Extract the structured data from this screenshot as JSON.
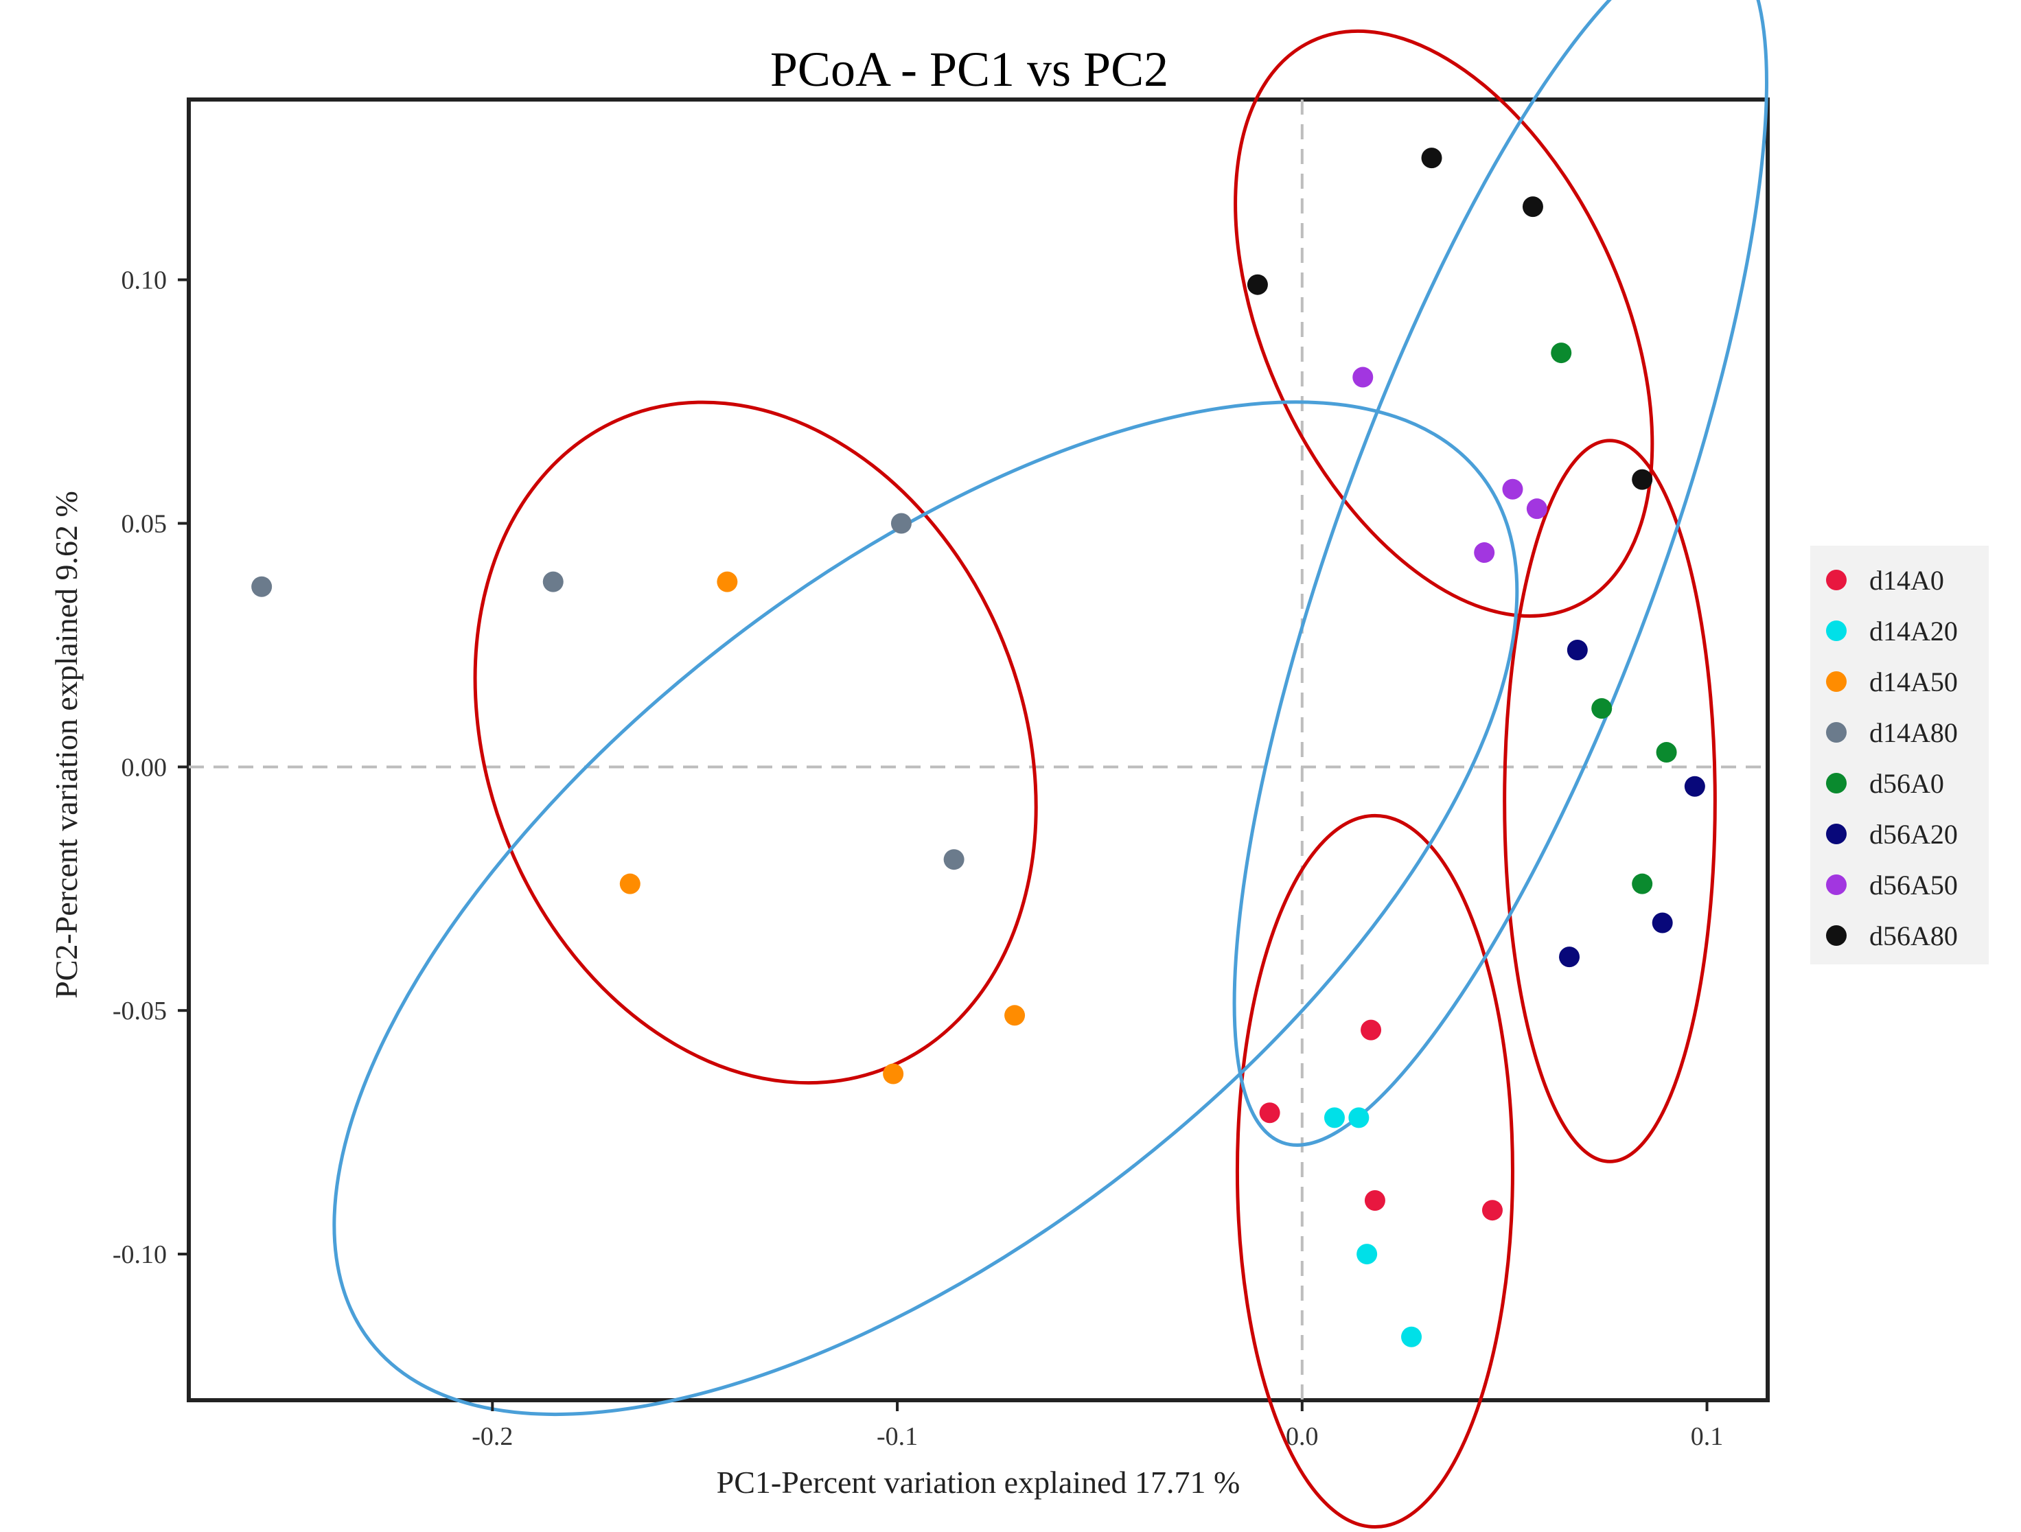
{
  "chart_data": {
    "type": "scatter",
    "title": "PCoA - PC1 vs PC2",
    "xlabel": "PC1-Percent variation explained 17.71 %",
    "ylabel": "PC2-Percent variation explained 9.62 %",
    "xlim": [
      -0.275,
      0.115
    ],
    "ylim": [
      -0.13,
      0.137
    ],
    "x_ticks": [
      {
        "value": -0.2,
        "label": "-0.2"
      },
      {
        "value": -0.1,
        "label": "-0.1"
      },
      {
        "value": 0.0,
        "label": "0.0"
      },
      {
        "value": 0.1,
        "label": "0.1"
      }
    ],
    "y_ticks": [
      {
        "value": 0.1,
        "label": "0.10"
      },
      {
        "value": 0.05,
        "label": "0.05"
      },
      {
        "value": 0.0,
        "label": "0.00"
      },
      {
        "value": -0.05,
        "label": "-0.05"
      },
      {
        "value": -0.1,
        "label": "-0.10"
      }
    ],
    "grid": false,
    "reference_lines": {
      "x": 0,
      "y": 0,
      "style": "dashed"
    },
    "legend_position": "right",
    "series": [
      {
        "name": "d14A0",
        "color": "#e8173f",
        "points": [
          [
            -0.008,
            -0.071
          ],
          [
            0.017,
            -0.054
          ],
          [
            0.018,
            -0.089
          ],
          [
            0.047,
            -0.091
          ]
        ]
      },
      {
        "name": "d14A20",
        "color": "#00e0e8",
        "points": [
          [
            0.008,
            -0.072
          ],
          [
            0.014,
            -0.072
          ],
          [
            0.016,
            -0.1
          ],
          [
            0.027,
            -0.117
          ]
        ]
      },
      {
        "name": "d14A50",
        "color": "#ff8c00",
        "points": [
          [
            -0.142,
            0.038
          ],
          [
            -0.166,
            -0.024
          ],
          [
            -0.071,
            -0.051
          ],
          [
            -0.101,
            -0.063
          ]
        ]
      },
      {
        "name": "d14A80",
        "color": "#6b7b8c",
        "points": [
          [
            -0.257,
            0.037
          ],
          [
            -0.185,
            0.038
          ],
          [
            -0.099,
            0.05
          ],
          [
            -0.086,
            -0.019
          ]
        ]
      },
      {
        "name": "d56A0",
        "color": "#0a8a2e",
        "points": [
          [
            0.064,
            0.085
          ],
          [
            0.074,
            0.012
          ],
          [
            0.09,
            0.003
          ],
          [
            0.084,
            -0.024
          ]
        ]
      },
      {
        "name": "d56A20",
        "color": "#08087a",
        "points": [
          [
            0.068,
            0.024
          ],
          [
            0.097,
            -0.004
          ],
          [
            0.089,
            -0.032
          ],
          [
            0.066,
            -0.039
          ]
        ]
      },
      {
        "name": "d56A50",
        "color": "#a236e0",
        "points": [
          [
            0.015,
            0.08
          ],
          [
            0.052,
            0.057
          ],
          [
            0.058,
            0.053
          ],
          [
            0.045,
            0.044
          ]
        ]
      },
      {
        "name": "d56A80",
        "color": "#111111",
        "points": [
          [
            0.032,
            0.125
          ],
          [
            0.057,
            0.115
          ],
          [
            -0.011,
            0.099
          ],
          [
            0.084,
            0.059
          ]
        ]
      }
    ],
    "ellipses": [
      {
        "group": "inner-1",
        "color": "#cc0000",
        "cx": -0.135,
        "cy": 0.005,
        "rx": 0.066,
        "ry": 0.072,
        "angle": -22
      },
      {
        "group": "inner-2",
        "color": "#cc0000",
        "cx": 0.035,
        "cy": 0.091,
        "rx": 0.044,
        "ry": 0.064,
        "angle": -25
      },
      {
        "group": "inner-3",
        "color": "#cc0000",
        "cx": 0.076,
        "cy": -0.007,
        "rx": 0.026,
        "ry": 0.074,
        "angle": 0
      },
      {
        "group": "inner-4",
        "color": "#cc0000",
        "cx": 0.018,
        "cy": -0.083,
        "rx": 0.034,
        "ry": 0.073,
        "angle": 0
      },
      {
        "group": "outer-1",
        "color": "#4a9fd8",
        "cx": -0.093,
        "cy": -0.029,
        "rx": 0.174,
        "ry": 0.068,
        "angle": -38
      },
      {
        "group": "outer-2",
        "color": "#4a9fd8",
        "cx": 0.049,
        "cy": 0.046,
        "rx": 0.04,
        "ry": 0.131,
        "angle": 20
      }
    ]
  }
}
